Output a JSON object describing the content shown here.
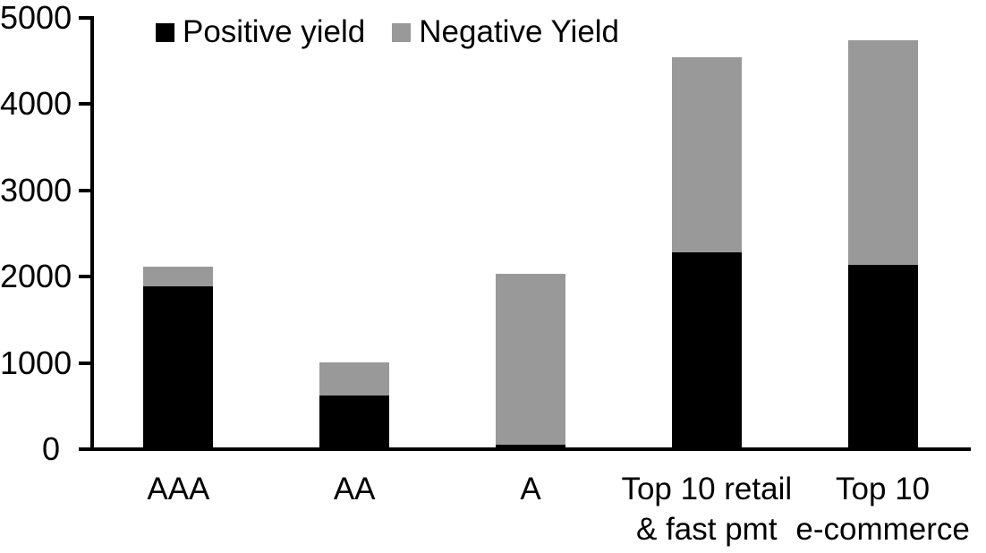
{
  "chart_data": {
    "type": "bar",
    "stacked": true,
    "title": "",
    "xlabel": "",
    "ylabel": "",
    "categories": [
      "AAA",
      "AA",
      "A",
      "Top 10 retail & fast pmt",
      "Top 10 e-commerce"
    ],
    "category_label_lines": [
      [
        "AAA"
      ],
      [
        "AA"
      ],
      [
        "A"
      ],
      [
        "Top 10 retail",
        "& fast pmt"
      ],
      [
        "Top 10",
        "e-commerce"
      ]
    ],
    "series": [
      {
        "name": "Positive yield",
        "color": "#000000",
        "values": [
          1890,
          620,
          50,
          2280,
          2140
        ]
      },
      {
        "name": "Negative Yield",
        "color": "#999999",
        "values": [
          230,
          385,
          1980,
          2260,
          2600
        ]
      }
    ],
    "ylim": [
      0,
      5000
    ],
    "yticks": [
      0,
      1000,
      2000,
      3000,
      4000,
      5000
    ],
    "ytick_labels": [
      "0",
      "1000",
      "2000",
      "3000",
      "4000",
      "5000"
    ],
    "grid": false,
    "legend_position": "top-left-inside"
  },
  "colors": {
    "axis": "#000000",
    "background": "#ffffff",
    "positive_yield": "#000000",
    "negative_yield": "#999999"
  }
}
